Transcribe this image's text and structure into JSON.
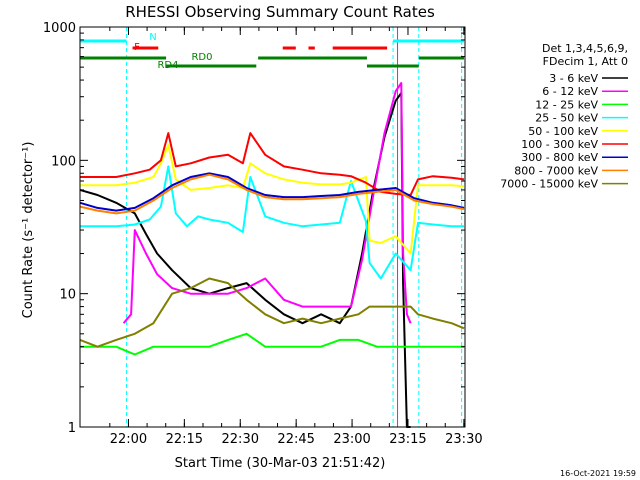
{
  "chart_data": {
    "type": "line",
    "title": "RHESSI Observing Summary Count Rates",
    "xlabel": "Start Time (30-Mar-03 21:51:42)",
    "ylabel": "Count Rate (s⁻¹ detector⁻¹)",
    "yscale": "log",
    "ylim": [
      1,
      1000
    ],
    "xlim_minutes": [
      -4.7,
      98.6
    ],
    "x_ticks": [
      {
        "m": 8.3,
        "label": "22:00"
      },
      {
        "m": 23.3,
        "label": "22:15"
      },
      {
        "m": 38.3,
        "label": "22:30"
      },
      {
        "m": 53.3,
        "label": "22:45"
      },
      {
        "m": 68.3,
        "label": "23:00"
      },
      {
        "m": 83.3,
        "label": "23:15"
      },
      {
        "m": 98.3,
        "label": "23:30"
      }
    ],
    "y_ticks": [
      {
        "v": 1,
        "label": "1"
      },
      {
        "v": 10,
        "label": "10"
      },
      {
        "v": 100,
        "label": "100"
      },
      {
        "v": 1000,
        "label": "1000"
      }
    ],
    "legend": {
      "header": [
        "Det 1,3,4,5,6,9,",
        "FDecim 1, Att 0"
      ],
      "position": "right"
    },
    "series": [
      {
        "name": "3 - 6 keV",
        "color": "#000000",
        "x": [
          -4.7,
          0,
          5,
          10,
          13,
          16,
          20,
          25,
          30,
          35,
          40,
          45,
          50,
          55,
          60,
          65,
          68,
          71,
          74,
          77,
          80,
          81.5,
          82,
          83,
          84
        ],
        "y": [
          60,
          55,
          48,
          40,
          28,
          20,
          15,
          11,
          10,
          11,
          12,
          9,
          7,
          6,
          7,
          6,
          8,
          20,
          60,
          150,
          280,
          320,
          12,
          1,
          1
        ]
      },
      {
        "name": "6 - 12 keV",
        "color": "#ff00ff",
        "x": [
          7,
          9,
          10,
          13,
          16,
          20,
          25,
          30,
          35,
          40,
          45,
          50,
          55,
          60,
          65,
          68,
          71,
          74,
          77,
          80,
          81.5,
          82,
          83,
          84
        ],
        "y": [
          6,
          7,
          30,
          20,
          14,
          11,
          10,
          10,
          10,
          11,
          13,
          9,
          8,
          8,
          8,
          8,
          18,
          55,
          160,
          330,
          380,
          20,
          7,
          6
        ]
      },
      {
        "name": "12 - 25 keV",
        "color": "#00ff00",
        "x": [
          -4.7,
          0,
          5,
          10,
          15,
          20,
          25,
          30,
          35,
          40,
          45,
          50,
          55,
          60,
          65,
          70,
          75,
          80,
          85,
          90,
          95,
          98.6
        ],
        "y": [
          4,
          4,
          4,
          3.5,
          4,
          4,
          4,
          4,
          4.5,
          5,
          4,
          4,
          4,
          4,
          4.5,
          4.5,
          4,
          4,
          4,
          4,
          4,
          4
        ]
      },
      {
        "name": "25 - 50 keV",
        "color": "#00ffff",
        "x": [
          -4.7,
          5,
          10,
          14,
          17,
          19,
          21,
          24,
          27,
          30,
          35,
          39,
          41,
          45,
          50,
          55,
          60,
          65,
          68,
          72,
          73,
          76,
          80,
          84,
          86,
          90,
          95,
          98.6
        ],
        "y": [
          32,
          32,
          33,
          36,
          45,
          90,
          40,
          32,
          38,
          36,
          34,
          29,
          75,
          38,
          34,
          32,
          33,
          34,
          70,
          35,
          17,
          13,
          20,
          15,
          34,
          33,
          32,
          32
        ]
      },
      {
        "name": "50 - 100 keV",
        "color": "#ffff00",
        "x": [
          -4.7,
          5,
          10,
          15,
          17,
          19,
          21,
          25,
          30,
          35,
          39,
          41,
          45,
          50,
          55,
          60,
          65,
          68,
          72,
          73,
          76,
          80,
          84,
          86,
          90,
          95,
          98.6
        ],
        "y": [
          65,
          65,
          68,
          75,
          95,
          130,
          72,
          60,
          62,
          65,
          62,
          95,
          80,
          72,
          68,
          66,
          66,
          68,
          75,
          25,
          24,
          27,
          20,
          65,
          65,
          65,
          64
        ]
      },
      {
        "name": "100 - 300 keV",
        "color": "#ff0000",
        "x": [
          -4.7,
          5,
          10,
          14,
          17,
          19,
          21,
          25,
          30,
          35,
          39,
          41,
          45,
          50,
          55,
          60,
          65,
          68,
          72,
          76,
          80,
          84,
          86,
          90,
          95,
          98.6
        ],
        "y": [
          75,
          75,
          80,
          85,
          100,
          160,
          90,
          95,
          105,
          110,
          95,
          160,
          110,
          90,
          85,
          80,
          78,
          76,
          68,
          58,
          56,
          55,
          72,
          76,
          74,
          72
        ]
      },
      {
        "name": "300 - 800 keV",
        "color": "#0000cc",
        "x": [
          -4.7,
          0,
          5,
          10,
          15,
          20,
          25,
          30,
          35,
          40,
          45,
          50,
          55,
          60,
          65,
          70,
          75,
          80,
          85,
          90,
          95,
          98.6
        ],
        "y": [
          48,
          44,
          42,
          44,
          52,
          65,
          75,
          80,
          75,
          62,
          55,
          53,
          53,
          54,
          55,
          58,
          60,
          62,
          52,
          48,
          46,
          44
        ]
      },
      {
        "name": "800 - 7000 keV",
        "color": "#ff8000",
        "x": [
          -4.7,
          0,
          5,
          10,
          15,
          20,
          25,
          30,
          35,
          40,
          45,
          50,
          55,
          60,
          65,
          70,
          75,
          80,
          85,
          90,
          95,
          98.6
        ],
        "y": [
          45,
          42,
          40,
          42,
          50,
          62,
          72,
          78,
          72,
          60,
          53,
          51,
          51,
          52,
          53,
          56,
          58,
          60,
          50,
          47,
          45,
          43
        ]
      },
      {
        "name": "7000 - 15000 keV",
        "color": "#808000",
        "x": [
          -4.7,
          0,
          5,
          10,
          15,
          20,
          25,
          30,
          35,
          40,
          45,
          50,
          55,
          60,
          65,
          70,
          73,
          76,
          80,
          84,
          86,
          90,
          95,
          98.6
        ],
        "y": [
          4.5,
          4,
          4.5,
          5,
          6,
          10,
          11,
          13,
          12,
          9,
          7,
          6,
          6.5,
          6,
          6.5,
          7,
          8,
          8,
          8,
          8,
          7,
          6.5,
          6,
          5.5
        ]
      }
    ],
    "status_bars": [
      {
        "label": "N",
        "color": "#00ffff",
        "segments": [
          [
            -4.7,
            7.8
          ],
          [
            79.3,
            98.6
          ]
        ]
      },
      {
        "label": "F",
        "color": "#ff0000",
        "segments": [
          [
            9.4,
            16.3
          ],
          [
            49.7,
            53.2
          ],
          [
            56.6,
            58.3
          ],
          [
            63.1,
            77.7
          ]
        ]
      },
      {
        "label": "RD0",
        "color": "#008000",
        "segments": [
          [
            -4.7,
            18.4
          ],
          [
            43.1,
            72.3
          ],
          [
            86.2,
            98.6
          ]
        ]
      },
      {
        "label": "RD4",
        "color": "#008000",
        "segments": [
          [
            18.4,
            42.6
          ],
          [
            72.3,
            86.2
          ]
        ]
      }
    ],
    "vertical_markers": [
      {
        "m": -4.7,
        "color": "#00ffff"
      },
      {
        "m": 7.8,
        "color": "#00ffff"
      },
      {
        "m": 79.3,
        "color": "#00ffff"
      },
      {
        "m": 80.5,
        "color": "#ff00ff"
      },
      {
        "m": 86.2,
        "color": "#00ffff"
      },
      {
        "m": 97.7,
        "color": "#00ffff"
      }
    ],
    "footer_timestamp": "16-Oct-2021 19:59"
  }
}
